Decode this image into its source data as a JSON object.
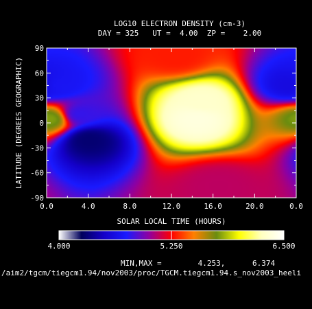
{
  "chart_data": {
    "type": "heatmap",
    "title": "LOG10 ELECTRON DENSITY (cm-3)",
    "subtitle": "DAY = 325   UT =  4.00  ZP =    2.00",
    "xlabel": "SOLAR LOCAL TIME (HOURS)",
    "ylabel": "LATITUDE (DEGREES GEOGRAPHIC)",
    "xlim": [
      0,
      24
    ],
    "ylim": [
      -90,
      90
    ],
    "x_tick_labels": [
      "0.0",
      "4.0",
      "8.0",
      "12.0",
      "16.0",
      "20.0",
      "0.0"
    ],
    "y_tick_labels": [
      "90",
      "60",
      "30",
      "0",
      "-30",
      "-60",
      "-90"
    ],
    "colorbar": {
      "min": 4.0,
      "max": 6.5,
      "labels": [
        "4.000",
        "5.250",
        "6.500"
      ],
      "colors": [
        "#ffffff",
        "#00005a",
        "#1400c8",
        "#1a1aff",
        "#9000a0",
        "#ff0000",
        "#ff8000",
        "#6a8c10",
        "#ffff00",
        "#ffffc0",
        "#ffffff"
      ]
    },
    "minmax_text": "MIN,MAX =        4.253,      6.374",
    "minmax": [
      4.253,
      6.374
    ],
    "path_text": "/aim2/tgcm/tiegcm1.94/nov2003/proc/TGCM.tiegcm1.94.s_nov2003_heeli",
    "field_features": [
      {
        "x": 14.5,
        "y": 5,
        "value": 6.37
      },
      {
        "x": 15.0,
        "y": 25,
        "value": 6.3
      },
      {
        "x": 4.0,
        "y": -20,
        "value": 4.3
      },
      {
        "x": 3.0,
        "y": 10,
        "value": 4.8
      },
      {
        "x": 1.0,
        "y": 45,
        "value": 4.7
      },
      {
        "x": 23.5,
        "y": 45,
        "value": 4.6
      },
      {
        "x": 12.5,
        "y": 80,
        "value": 5.3
      },
      {
        "x": 16.5,
        "y": -75,
        "value": 5.1
      },
      {
        "x": 0.5,
        "y": 5,
        "value": 5.8
      }
    ]
  }
}
